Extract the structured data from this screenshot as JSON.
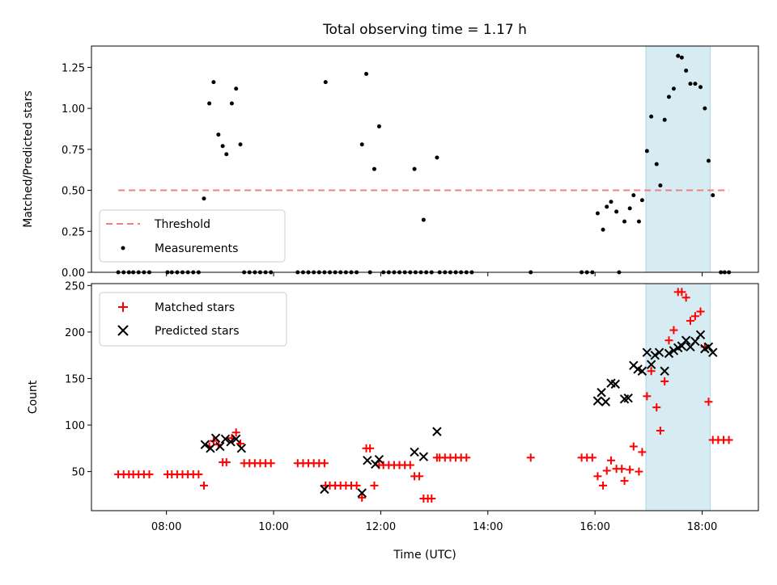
{
  "title": "Total observing time = 1.17 h",
  "colors": {
    "threshold": "#f08080",
    "measurement": "#000000",
    "matched": "#ff0000",
    "predicted": "#000000",
    "span_fill": "#add8e6"
  },
  "chart_data": [
    {
      "type": "scatter",
      "ylabel": "Matched/Predicted stars",
      "xlabel": "",
      "xlim": [
        6.6,
        19.05
      ],
      "ylim": [
        0,
        1.38
      ],
      "y_ticks": [
        0,
        0.25,
        0.5,
        0.75,
        1.0,
        1.25
      ],
      "y_tick_labels": [
        "0.00",
        "0.25",
        "0.50",
        "0.75",
        "1.00",
        "1.25"
      ],
      "x_tick_values": [
        8,
        10,
        12,
        14,
        16,
        18
      ],
      "highlight_span": [
        16.95,
        18.15
      ],
      "threshold_line": {
        "name": "Threshold",
        "y": 0.5,
        "x_range": [
          7.1,
          18.5
        ]
      },
      "legend": {
        "position": "lower-left",
        "entries": [
          "Threshold",
          "Measurements"
        ]
      },
      "series": [
        {
          "name": "Measurements",
          "marker": "dot",
          "points": [
            [
              7.1,
              0
            ],
            [
              7.2,
              0
            ],
            [
              7.3,
              0
            ],
            [
              7.38,
              0
            ],
            [
              7.48,
              0
            ],
            [
              7.58,
              0
            ],
            [
              7.68,
              0
            ],
            [
              8.02,
              0
            ],
            [
              8.1,
              0
            ],
            [
              8.2,
              0
            ],
            [
              8.3,
              0
            ],
            [
              8.4,
              0
            ],
            [
              8.5,
              0
            ],
            [
              8.6,
              0
            ],
            [
              8.7,
              0.45
            ],
            [
              8.8,
              1.03
            ],
            [
              8.88,
              1.16
            ],
            [
              8.97,
              0.84
            ],
            [
              9.05,
              0.77
            ],
            [
              9.12,
              0.72
            ],
            [
              9.22,
              1.03
            ],
            [
              9.3,
              1.12
            ],
            [
              9.38,
              0.78
            ],
            [
              9.45,
              0
            ],
            [
              9.55,
              0
            ],
            [
              9.65,
              0
            ],
            [
              9.75,
              0
            ],
            [
              9.85,
              0
            ],
            [
              9.95,
              0
            ],
            [
              10.45,
              0
            ],
            [
              10.55,
              0
            ],
            [
              10.65,
              0
            ],
            [
              10.75,
              0
            ],
            [
              10.85,
              0
            ],
            [
              10.95,
              0
            ],
            [
              10.97,
              1.16
            ],
            [
              11.05,
              0
            ],
            [
              11.15,
              0
            ],
            [
              11.25,
              0
            ],
            [
              11.35,
              0
            ],
            [
              11.45,
              0
            ],
            [
              11.55,
              0
            ],
            [
              11.65,
              0.78
            ],
            [
              11.73,
              1.21
            ],
            [
              11.88,
              0.63
            ],
            [
              11.97,
              0.89
            ],
            [
              11.8,
              0
            ],
            [
              12.05,
              0
            ],
            [
              12.15,
              0
            ],
            [
              12.25,
              0
            ],
            [
              12.35,
              0
            ],
            [
              12.45,
              0
            ],
            [
              12.55,
              0
            ],
            [
              12.63,
              0.63
            ],
            [
              12.8,
              0.32
            ],
            [
              12.65,
              0
            ],
            [
              12.75,
              0
            ],
            [
              12.85,
              0
            ],
            [
              12.95,
              0
            ],
            [
              13.05,
              0.7
            ],
            [
              13.1,
              0
            ],
            [
              13.2,
              0
            ],
            [
              13.3,
              0
            ],
            [
              13.4,
              0
            ],
            [
              13.5,
              0
            ],
            [
              13.6,
              0
            ],
            [
              13.7,
              0
            ],
            [
              14.8,
              0
            ],
            [
              15.75,
              0
            ],
            [
              15.85,
              0
            ],
            [
              15.95,
              0
            ],
            [
              16.05,
              0.36
            ],
            [
              16.15,
              0.26
            ],
            [
              16.22,
              0.4
            ],
            [
              16.3,
              0.43
            ],
            [
              16.4,
              0.37
            ],
            [
              16.45,
              0
            ],
            [
              16.55,
              0.31
            ],
            [
              16.65,
              0.39
            ],
            [
              16.72,
              0.47
            ],
            [
              16.82,
              0.31
            ],
            [
              16.88,
              0.44
            ],
            [
              16.97,
              0.74
            ],
            [
              17.05,
              0.95
            ],
            [
              17.15,
              0.66
            ],
            [
              17.22,
              0.53
            ],
            [
              17.3,
              0.93
            ],
            [
              17.38,
              1.07
            ],
            [
              17.47,
              1.12
            ],
            [
              17.55,
              1.32
            ],
            [
              17.62,
              1.31
            ],
            [
              17.7,
              1.23
            ],
            [
              17.78,
              1.15
            ],
            [
              17.87,
              1.15
            ],
            [
              17.97,
              1.13
            ],
            [
              18.05,
              1.0
            ],
            [
              18.12,
              0.68
            ],
            [
              18.2,
              0.47
            ],
            [
              18.35,
              0
            ],
            [
              18.42,
              0
            ],
            [
              18.5,
              0
            ]
          ]
        }
      ]
    },
    {
      "type": "scatter",
      "ylabel": "Count",
      "xlabel": "Time (UTC)",
      "xlim": [
        6.6,
        19.05
      ],
      "ylim": [
        8,
        252
      ],
      "y_ticks": [
        50,
        100,
        150,
        200,
        250
      ],
      "y_tick_labels": [
        "50",
        "100",
        "150",
        "200",
        "250"
      ],
      "x_ticks": [
        "08:00",
        "10:00",
        "12:00",
        "14:00",
        "16:00",
        "18:00"
      ],
      "x_tick_values": [
        8,
        10,
        12,
        14,
        16,
        18
      ],
      "highlight_span": [
        16.95,
        18.15
      ],
      "legend": {
        "position": "upper-left",
        "entries": [
          "Matched stars",
          "Predicted stars"
        ]
      },
      "series": [
        {
          "name": "Matched stars",
          "marker": "plus",
          "points": [
            [
              7.1,
              47
            ],
            [
              7.2,
              47
            ],
            [
              7.3,
              47
            ],
            [
              7.38,
              47
            ],
            [
              7.48,
              47
            ],
            [
              7.58,
              47
            ],
            [
              7.68,
              47
            ],
            [
              8.02,
              47
            ],
            [
              8.1,
              47
            ],
            [
              8.2,
              47
            ],
            [
              8.3,
              47
            ],
            [
              8.4,
              47
            ],
            [
              8.5,
              47
            ],
            [
              8.6,
              47
            ],
            [
              8.7,
              35
            ],
            [
              8.8,
              77
            ],
            [
              8.88,
              83
            ],
            [
              8.97,
              79
            ],
            [
              9.05,
              60
            ],
            [
              9.12,
              60
            ],
            [
              9.22,
              86
            ],
            [
              9.3,
              92
            ],
            [
              9.38,
              80
            ],
            [
              9.45,
              59
            ],
            [
              9.55,
              59
            ],
            [
              9.65,
              59
            ],
            [
              9.75,
              59
            ],
            [
              9.85,
              59
            ],
            [
              9.95,
              59
            ],
            [
              10.45,
              59
            ],
            [
              10.55,
              59
            ],
            [
              10.65,
              59
            ],
            [
              10.75,
              59
            ],
            [
              10.85,
              59
            ],
            [
              10.95,
              59
            ],
            [
              10.97,
              35
            ],
            [
              11.05,
              35
            ],
            [
              11.15,
              35
            ],
            [
              11.25,
              35
            ],
            [
              11.35,
              35
            ],
            [
              11.45,
              35
            ],
            [
              11.55,
              35
            ],
            [
              11.65,
              22
            ],
            [
              11.73,
              75
            ],
            [
              11.8,
              75
            ],
            [
              11.88,
              35
            ],
            [
              11.97,
              57
            ],
            [
              12.05,
              57
            ],
            [
              12.15,
              57
            ],
            [
              12.25,
              57
            ],
            [
              12.35,
              57
            ],
            [
              12.45,
              57
            ],
            [
              12.55,
              57
            ],
            [
              12.63,
              45
            ],
            [
              12.72,
              45
            ],
            [
              12.8,
              21
            ],
            [
              12.88,
              21
            ],
            [
              12.95,
              21
            ],
            [
              13.05,
              65
            ],
            [
              13.1,
              65
            ],
            [
              13.2,
              65
            ],
            [
              13.3,
              65
            ],
            [
              13.4,
              65
            ],
            [
              13.5,
              65
            ],
            [
              13.6,
              65
            ],
            [
              14.8,
              65
            ],
            [
              15.75,
              65
            ],
            [
              15.85,
              65
            ],
            [
              15.95,
              65
            ],
            [
              16.05,
              45
            ],
            [
              16.15,
              35
            ],
            [
              16.22,
              51
            ],
            [
              16.3,
              62
            ],
            [
              16.4,
              53
            ],
            [
              16.5,
              53
            ],
            [
              16.55,
              40
            ],
            [
              16.65,
              52
            ],
            [
              16.72,
              77
            ],
            [
              16.82,
              50
            ],
            [
              16.88,
              71
            ],
            [
              16.97,
              131
            ],
            [
              17.05,
              158
            ],
            [
              17.15,
              119
            ],
            [
              17.22,
              94
            ],
            [
              17.3,
              147
            ],
            [
              17.38,
              191
            ],
            [
              17.47,
              202
            ],
            [
              17.55,
              243
            ],
            [
              17.62,
              243
            ],
            [
              17.7,
              237
            ],
            [
              17.78,
              212
            ],
            [
              17.87,
              217
            ],
            [
              17.97,
              222
            ],
            [
              18.05,
              184
            ],
            [
              18.12,
              125
            ],
            [
              18.2,
              84
            ],
            [
              18.3,
              84
            ],
            [
              18.4,
              84
            ],
            [
              18.5,
              84
            ]
          ]
        },
        {
          "name": "Predicted stars",
          "marker": "x",
          "points": [
            [
              8.72,
              79
            ],
            [
              8.82,
              75
            ],
            [
              8.92,
              86
            ],
            [
              9.0,
              77
            ],
            [
              9.1,
              85
            ],
            [
              9.2,
              82
            ],
            [
              9.3,
              85
            ],
            [
              9.4,
              75
            ],
            [
              10.95,
              31
            ],
            [
              11.65,
              27
            ],
            [
              11.75,
              62
            ],
            [
              11.9,
              58
            ],
            [
              11.97,
              63
            ],
            [
              12.63,
              71
            ],
            [
              12.8,
              66
            ],
            [
              13.05,
              93
            ],
            [
              16.05,
              126
            ],
            [
              16.12,
              135
            ],
            [
              16.2,
              125
            ],
            [
              16.3,
              145
            ],
            [
              16.38,
              144
            ],
            [
              16.55,
              128
            ],
            [
              16.62,
              129
            ],
            [
              16.72,
              164
            ],
            [
              16.8,
              160
            ],
            [
              16.88,
              158
            ],
            [
              16.97,
              178
            ],
            [
              17.05,
              165
            ],
            [
              17.12,
              175
            ],
            [
              17.2,
              178
            ],
            [
              17.3,
              158
            ],
            [
              17.38,
              177
            ],
            [
              17.47,
              180
            ],
            [
              17.55,
              183
            ],
            [
              17.62,
              185
            ],
            [
              17.7,
              191
            ],
            [
              17.78,
              184
            ],
            [
              17.87,
              190
            ],
            [
              17.97,
              197
            ],
            [
              18.05,
              182
            ],
            [
              18.12,
              184
            ],
            [
              18.2,
              178
            ]
          ]
        }
      ]
    }
  ]
}
